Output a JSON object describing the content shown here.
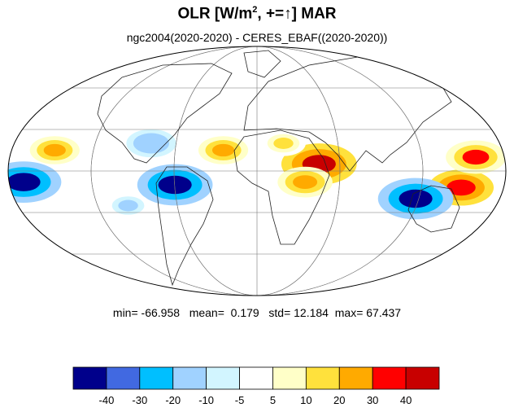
{
  "title": {
    "main": "OLR [W/m",
    "sup": "2",
    "suffix": ", +=↑] MAR"
  },
  "subtitle": "ngc2004(2020-2020) - CERES_EBAF((2020-2020))",
  "stats": {
    "min_label": "min=",
    "min": "-66.958",
    "mean_label": "mean=",
    "mean": "0.179",
    "std_label": "std=",
    "std": "12.184",
    "max_label": "max=",
    "max": "67.437"
  },
  "colorbar": {
    "colors": [
      "#00008b",
      "#4169e1",
      "#00bfff",
      "#a0d2ff",
      "#d2f5ff",
      "#ffffff",
      "#ffffc8",
      "#ffe13c",
      "#ffaa00",
      "#ff0000",
      "#c80000"
    ],
    "labels": [
      "-40",
      "-30",
      "-20",
      "-10",
      "-5",
      "5",
      "10",
      "20",
      "30",
      "40"
    ]
  },
  "chart_data": {
    "type": "heatmap",
    "projection": "Mollweide",
    "variable": "OLR difference",
    "units": "W/m2",
    "month": "MAR",
    "levels": [
      -40,
      -30,
      -20,
      -10,
      -5,
      5,
      10,
      20,
      30,
      40
    ],
    "anomalies": [
      {
        "lon": -25,
        "lat": 15,
        "value": 20
      },
      {
        "lon": 45,
        "lat": 5,
        "value": 45
      },
      {
        "lon": 35,
        "lat": -8,
        "value": 25
      },
      {
        "lon": 150,
        "lat": -12,
        "value": 35
      },
      {
        "lon": 120,
        "lat": -20,
        "value": -45
      },
      {
        "lon": -60,
        "lat": -10,
        "value": -45
      },
      {
        "lon": -170,
        "lat": -8,
        "value": -45
      },
      {
        "lon": -150,
        "lat": 15,
        "value": 20
      },
      {
        "lon": 160,
        "lat": 10,
        "value": 30
      },
      {
        "lon": -80,
        "lat": 20,
        "value": -20
      },
      {
        "lon": 20,
        "lat": 20,
        "value": 15
      },
      {
        "lon": -100,
        "lat": -25,
        "value": -15
      }
    ]
  }
}
